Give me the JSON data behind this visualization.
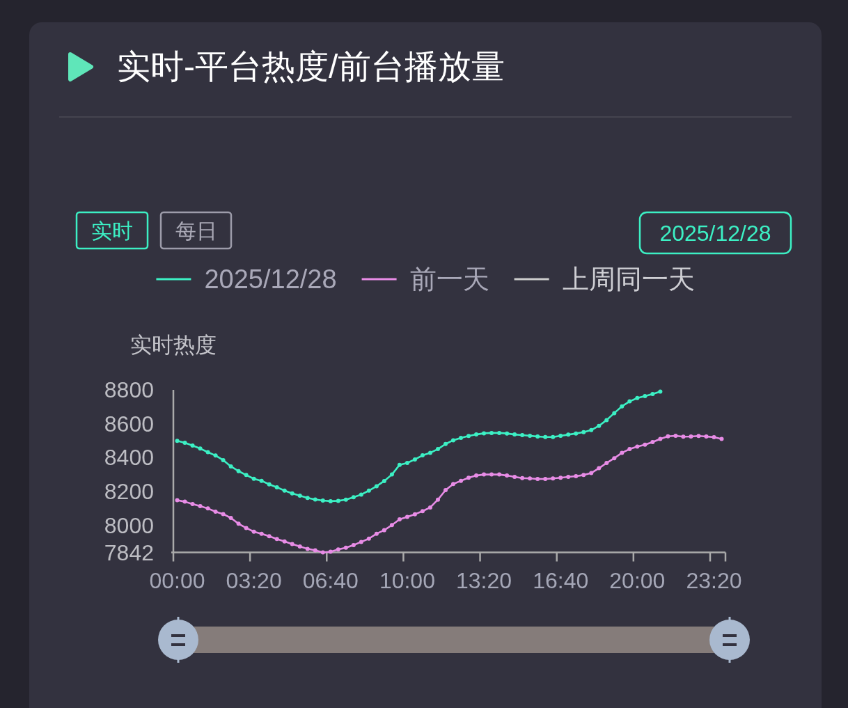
{
  "chart_data": {
    "type": "line",
    "title": "实时-平台热度/前台播放量",
    "ylabel": "实时热度",
    "annotations": [
      "实时",
      "每日",
      "2025/12/28"
    ],
    "categories": [
      "00:00",
      null,
      null,
      null,
      null,
      null,
      null,
      null,
      null,
      null,
      "03:20",
      null,
      null,
      null,
      null,
      null,
      null,
      null,
      null,
      null,
      "06:40",
      null,
      null,
      null,
      null,
      null,
      null,
      null,
      null,
      null,
      "10:00",
      null,
      null,
      null,
      null,
      null,
      null,
      null,
      null,
      null,
      "13:20",
      null,
      null,
      null,
      null,
      null,
      null,
      null,
      null,
      null,
      "16:40",
      null,
      null,
      null,
      null,
      null,
      null,
      null,
      null,
      null,
      "20:00",
      null,
      null,
      null,
      null,
      null,
      null,
      null,
      null,
      null,
      "23:20",
      null
    ],
    "series": [
      {
        "name": "2025/12/28",
        "color": "#3cf0c4",
        "values": [
          8499,
          8488,
          8472,
          8454,
          8433,
          8413,
          8386,
          8349,
          8321,
          8298,
          8276,
          8264,
          8243,
          8226,
          8206,
          8190,
          8176,
          8163,
          8154,
          8148,
          8144,
          8146,
          8153,
          8167,
          8183,
          8206,
          8232,
          8263,
          8301,
          8358,
          8369,
          8390,
          8414,
          8429,
          8451,
          8481,
          8503,
          8517,
          8528,
          8537,
          8544,
          8546,
          8546,
          8543,
          8537,
          8533,
          8529,
          8525,
          8522,
          8522,
          8529,
          8536,
          8543,
          8551,
          8563,
          8588,
          8622,
          8663,
          8703,
          8732,
          8752,
          8763,
          8775,
          8790,
          null,
          null,
          null,
          null,
          null,
          null,
          null,
          null
        ]
      },
      {
        "name": "前一天",
        "color": "#e88ce6",
        "values": [
          8150,
          8141,
          8127,
          8115,
          8101,
          8082,
          8068,
          8045,
          8011,
          7986,
          7964,
          7952,
          7937,
          7921,
          7907,
          7891,
          7877,
          7863,
          7854,
          7842,
          7846,
          7859,
          7870,
          7885,
          7904,
          7923,
          7952,
          7973,
          8003,
          8037,
          8051,
          8067,
          8085,
          8107,
          8153,
          8209,
          8245,
          8264,
          8282,
          8295,
          8301,
          8301,
          8301,
          8295,
          8287,
          8280,
          8278,
          8275,
          8275,
          8278,
          8282,
          8287,
          8291,
          8298,
          8310,
          8338,
          8369,
          8397,
          8429,
          8451,
          8466,
          8477,
          8492,
          8511,
          8526,
          8529,
          8524,
          8525,
          8528,
          8525,
          8521,
          8511
        ]
      },
      {
        "name": "上周同一天",
        "color": "#cccccc",
        "values": [
          null,
          null,
          null,
          null,
          null,
          null,
          null,
          null,
          null,
          null,
          null,
          null,
          null,
          null,
          null,
          null,
          null,
          null,
          null,
          null,
          null,
          null,
          null,
          null,
          null,
          null,
          null,
          null,
          null,
          null,
          null,
          null,
          null,
          null,
          null,
          null,
          null,
          null,
          null,
          null,
          null,
          null,
          null,
          null,
          null,
          null,
          null,
          null,
          null,
          null,
          null,
          null,
          null,
          null,
          null,
          null,
          null,
          null,
          null,
          null,
          null,
          null,
          null,
          null,
          null,
          null,
          null,
          null,
          null,
          null,
          null,
          null
        ]
      }
    ],
    "ylim": [
      7842,
      8800
    ],
    "yticks": [
      7842,
      8000,
      8200,
      8400,
      8600,
      8800
    ],
    "legend": "top",
    "marker": "circle",
    "line_style": "solid"
  }
}
